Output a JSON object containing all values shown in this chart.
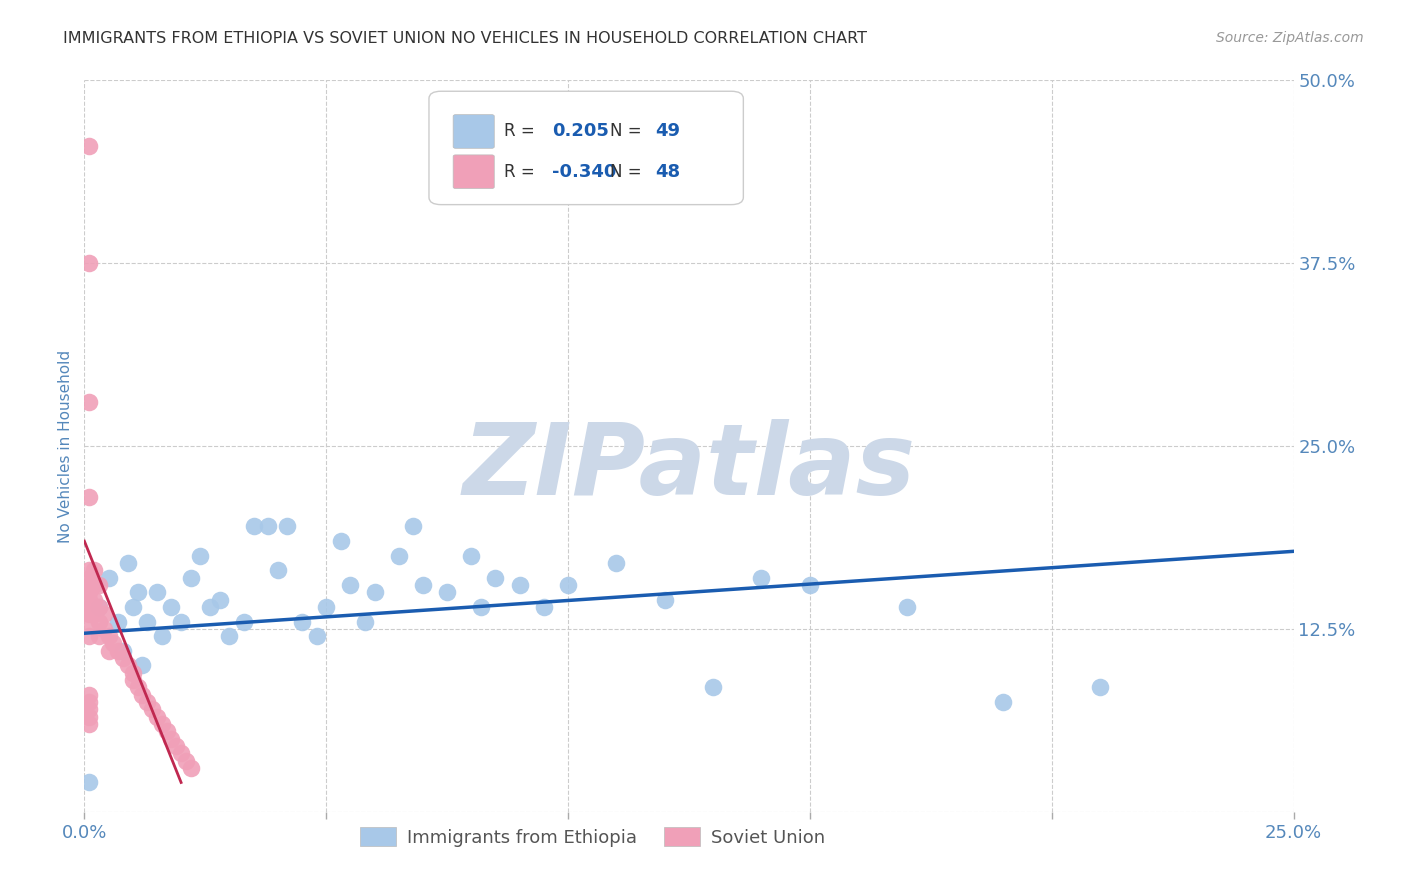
{
  "title": "IMMIGRANTS FROM ETHIOPIA VS SOVIET UNION NO VEHICLES IN HOUSEHOLD CORRELATION CHART",
  "source": "Source: ZipAtlas.com",
  "ylabel": "No Vehicles in Household",
  "xlim": [
    0.0,
    0.25
  ],
  "ylim": [
    0.0,
    0.5
  ],
  "xticks": [
    0.0,
    0.05,
    0.1,
    0.15,
    0.2,
    0.25
  ],
  "xticklabels": [
    "0.0%",
    "",
    "",
    "",
    "",
    "25.0%"
  ],
  "yticks": [
    0.0,
    0.125,
    0.25,
    0.375,
    0.5
  ],
  "yticklabels": [
    "",
    "12.5%",
    "25.0%",
    "37.5%",
    "50.0%"
  ],
  "ethiopia_R": "0.205",
  "ethiopia_N": "49",
  "soviet_R": "-0.340",
  "soviet_N": "48",
  "ethiopia_color": "#a8c8e8",
  "soviet_color": "#f0a0b8",
  "ethiopia_line_color": "#1a5cb0",
  "soviet_line_color": "#c02850",
  "background_color": "#ffffff",
  "grid_color": "#cccccc",
  "title_color": "#333333",
  "tick_color": "#5588bb",
  "watermark_color": "#ccd8e8",
  "legend_edge_color": "#cccccc",
  "legend_text_color": "#333333",
  "bottom_legend_text_color": "#555555",
  "ethiopia_x": [
    0.001,
    0.003,
    0.005,
    0.007,
    0.008,
    0.009,
    0.01,
    0.011,
    0.012,
    0.013,
    0.015,
    0.016,
    0.018,
    0.02,
    0.022,
    0.024,
    0.026,
    0.028,
    0.03,
    0.033,
    0.035,
    0.038,
    0.04,
    0.042,
    0.045,
    0.048,
    0.05,
    0.053,
    0.055,
    0.058,
    0.06,
    0.065,
    0.068,
    0.07,
    0.075,
    0.08,
    0.082,
    0.085,
    0.09,
    0.095,
    0.1,
    0.11,
    0.12,
    0.13,
    0.14,
    0.15,
    0.17,
    0.19,
    0.21
  ],
  "ethiopia_y": [
    0.02,
    0.14,
    0.16,
    0.13,
    0.11,
    0.17,
    0.14,
    0.15,
    0.1,
    0.13,
    0.15,
    0.12,
    0.14,
    0.13,
    0.16,
    0.175,
    0.14,
    0.145,
    0.12,
    0.13,
    0.195,
    0.195,
    0.165,
    0.195,
    0.13,
    0.12,
    0.14,
    0.185,
    0.155,
    0.13,
    0.15,
    0.175,
    0.195,
    0.155,
    0.15,
    0.175,
    0.14,
    0.16,
    0.155,
    0.14,
    0.155,
    0.17,
    0.145,
    0.085,
    0.16,
    0.155,
    0.14,
    0.075,
    0.085
  ],
  "soviet_x": [
    0.001,
    0.001,
    0.001,
    0.001,
    0.001,
    0.001,
    0.001,
    0.001,
    0.001,
    0.001,
    0.001,
    0.001,
    0.001,
    0.002,
    0.002,
    0.002,
    0.002,
    0.003,
    0.003,
    0.003,
    0.003,
    0.004,
    0.004,
    0.005,
    0.005,
    0.006,
    0.007,
    0.008,
    0.009,
    0.01,
    0.01,
    0.011,
    0.012,
    0.013,
    0.014,
    0.015,
    0.016,
    0.017,
    0.018,
    0.019,
    0.02,
    0.021,
    0.022,
    0.001,
    0.001,
    0.001,
    0.001,
    0.001
  ],
  "soviet_y": [
    0.455,
    0.375,
    0.28,
    0.215,
    0.165,
    0.16,
    0.155,
    0.15,
    0.145,
    0.14,
    0.135,
    0.13,
    0.12,
    0.165,
    0.155,
    0.145,
    0.135,
    0.155,
    0.14,
    0.13,
    0.12,
    0.135,
    0.125,
    0.12,
    0.11,
    0.115,
    0.11,
    0.105,
    0.1,
    0.095,
    0.09,
    0.085,
    0.08,
    0.075,
    0.07,
    0.065,
    0.06,
    0.055,
    0.05,
    0.045,
    0.04,
    0.035,
    0.03,
    0.08,
    0.075,
    0.07,
    0.065,
    0.06
  ],
  "eth_line_x": [
    0.0,
    0.25
  ],
  "eth_line_y": [
    0.122,
    0.178
  ],
  "sov_line_x": [
    0.0,
    0.02
  ],
  "sov_line_y": [
    0.185,
    0.02
  ]
}
